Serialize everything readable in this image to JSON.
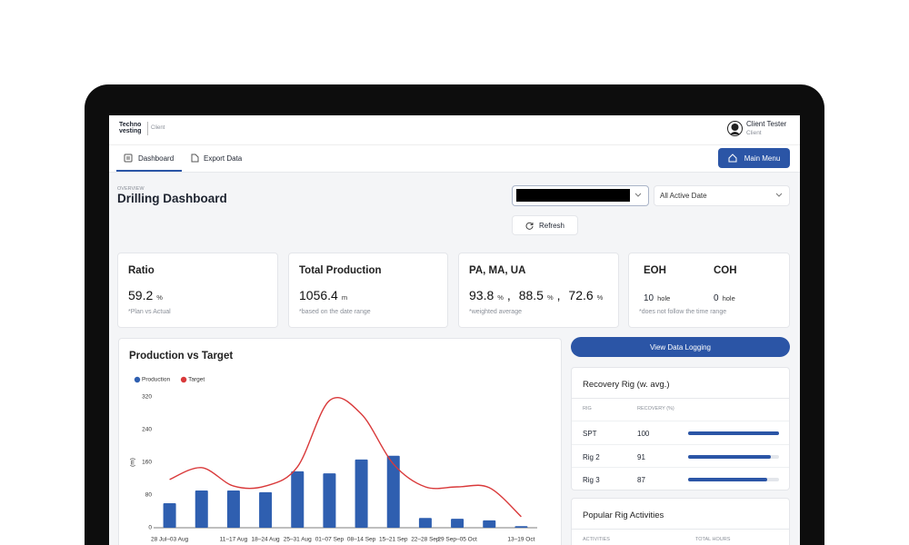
{
  "header": {
    "logo": [
      "Techno",
      "vesting"
    ],
    "portal": "Client",
    "user_name": "Client Tester",
    "user_role": "Client"
  },
  "nav": {
    "tabs": [
      "Dashboard",
      "Export Data"
    ],
    "main_menu": "Main Menu"
  },
  "overview": {
    "eyebrow": "OVERVIEW",
    "title": "Drilling Dashboard",
    "date_filter": "All Active Date",
    "refresh": "Refresh"
  },
  "cards": [
    {
      "title": "Ratio",
      "value": 59.2,
      "unit": "%",
      "note": "*Plan vs Actual"
    },
    {
      "title": "Total Production",
      "value": 1056.4,
      "unit": "m",
      "note": "*based on the date range"
    },
    {
      "title": "PA, MA, UA",
      "values": [
        93.8,
        88.5,
        72.6
      ],
      "unit": "%",
      "separator": ",",
      "note": "*weighted average"
    },
    {
      "titles": [
        "EOH",
        "COH"
      ],
      "values": [
        10,
        0
      ],
      "unit": "hole",
      "note": "*does not follow the time range"
    }
  ],
  "chart_data": {
    "type": "bar",
    "title": "Production vs Target",
    "y_label": "(m)",
    "categories": [
      "28 Jul–03 Aug",
      null,
      "11–17 Aug",
      "18–24 Aug",
      "25–31 Aug",
      "01–07 Sep",
      "08–14 Sep",
      "15–21 Sep",
      "22–28 Sep",
      "29 Sep–05 Oct",
      null,
      "13–19 Oct"
    ],
    "series": [
      {
        "name": "Production",
        "type": "bar",
        "color": "#2f5fb0",
        "values": [
          60,
          91,
          91,
          87,
          138,
          133,
          167,
          176,
          24,
          22,
          18,
          4
        ]
      },
      {
        "name": "Target",
        "type": "line",
        "color": "#d9393a",
        "values": [
          118,
          147,
          102,
          102,
          149,
          311,
          278,
          156,
          100,
          100,
          98,
          27
        ]
      }
    ],
    "ylim": [
      0,
      320
    ],
    "yticks": [
      0,
      80,
      160,
      240,
      320
    ],
    "grid": false
  },
  "logging": {
    "button": "View Data Logging"
  },
  "recovery": {
    "title": "Recovery Rig (w. avg.)",
    "columns": [
      "RIG",
      "RECOVERY (%)"
    ],
    "rows": [
      [
        "SPT",
        100
      ],
      [
        "Rig 2",
        91
      ],
      [
        "Rig 3",
        87
      ]
    ]
  },
  "activities": {
    "title": "Popular Rig Activities",
    "columns": [
      "ACTIVITIES",
      "TOTAL HOURS"
    ]
  }
}
